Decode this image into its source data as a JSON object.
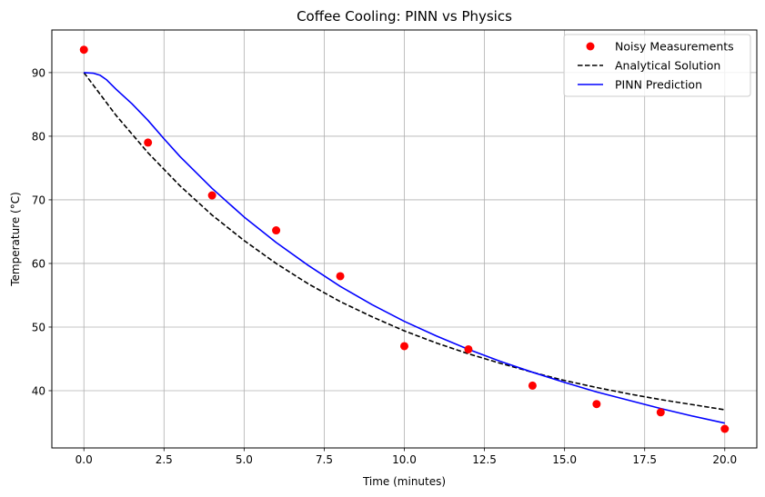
{
  "chart_data": {
    "type": "line",
    "title": "Coffee Cooling: PINN vs Physics",
    "xlabel": "Time (minutes)",
    "ylabel": "Temperature (°C)",
    "xlim": [
      -1.0,
      21.0
    ],
    "ylim": [
      31.0,
      96.7
    ],
    "xticks": [
      0.0,
      2.5,
      5.0,
      7.5,
      10.0,
      12.5,
      15.0,
      17.5,
      20.0
    ],
    "xtick_labels": [
      "0.0",
      "2.5",
      "5.0",
      "7.5",
      "10.0",
      "12.5",
      "15.0",
      "17.5",
      "20.0"
    ],
    "yticks": [
      40,
      50,
      60,
      70,
      80,
      90
    ],
    "ytick_labels": [
      "40",
      "50",
      "60",
      "70",
      "80",
      "90"
    ],
    "grid": true,
    "legend_position": "top-right",
    "series": [
      {
        "name": "Noisy Measurements",
        "kind": "scatter",
        "color": "#ff0000",
        "x": [
          0,
          2,
          4,
          6,
          8,
          10,
          12,
          14,
          16,
          18,
          20
        ],
        "y": [
          93.6,
          79.0,
          70.7,
          65.2,
          58.0,
          47.0,
          46.5,
          40.8,
          37.9,
          36.6,
          34.0
        ]
      },
      {
        "name": "Analytical Solution",
        "kind": "line",
        "style": "dashed",
        "color": "#000000",
        "x": [
          0,
          1,
          2,
          3,
          4,
          5,
          6,
          7,
          8,
          9,
          10,
          11,
          12,
          13,
          14,
          15,
          16,
          17,
          18,
          19,
          20
        ],
        "y": [
          90.0,
          83.3,
          77.4,
          72.2,
          67.6,
          63.6,
          60.0,
          56.8,
          54.0,
          51.6,
          49.4,
          47.5,
          45.8,
          44.3,
          42.9,
          41.6,
          40.5,
          39.5,
          38.6,
          37.8,
          37.0
        ]
      },
      {
        "name": "PINN Prediction",
        "kind": "line",
        "style": "solid",
        "color": "#0000ff",
        "x": [
          0,
          0.3,
          0.5,
          0.7,
          1.0,
          1.5,
          2.0,
          2.5,
          3.0,
          4.0,
          5.0,
          6.0,
          7.0,
          8.0,
          9.0,
          10.0,
          11.0,
          12.0,
          13.0,
          14.0,
          15.0,
          16.0,
          17.0,
          18.0,
          19.0,
          20.0
        ],
        "y": [
          90.0,
          89.9,
          89.6,
          88.9,
          87.4,
          85.1,
          82.5,
          79.6,
          76.8,
          71.8,
          67.3,
          63.3,
          59.7,
          56.4,
          53.5,
          50.9,
          48.6,
          46.5,
          44.6,
          42.9,
          41.3,
          39.8,
          38.5,
          37.2,
          36.0,
          34.9
        ]
      }
    ]
  }
}
